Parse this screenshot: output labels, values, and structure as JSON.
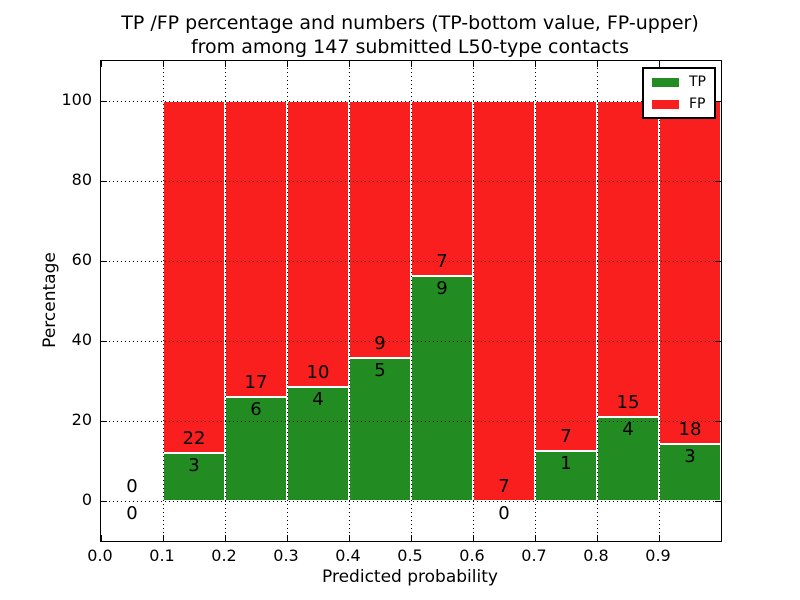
{
  "figure": {
    "title_line1": "TP /FP percentage and numbers (TP-bottom value, FP-upper)",
    "title_line2": "from among 147 submitted L50-type contacts",
    "xlabel": "Predicted probability",
    "ylabel": "Percentage"
  },
  "legend": {
    "position": "upper right",
    "items": [
      {
        "label": "TP",
        "color": "#228B22"
      },
      {
        "label": "FP",
        "color": "#FA1F1F"
      }
    ]
  },
  "chart_data": {
    "type": "bar",
    "stacked": true,
    "title": "TP /FP percentage and numbers (TP-bottom value, FP-upper) from among 147 submitted L50-type contacts",
    "xlabel": "Predicted probability",
    "ylabel": "Percentage",
    "xlim": [
      0.0,
      1.0
    ],
    "ylim": [
      -10,
      110
    ],
    "x_ticks": [
      "0.0",
      "0.1",
      "0.2",
      "0.3",
      "0.4",
      "0.5",
      "0.6",
      "0.7",
      "0.8",
      "0.9"
    ],
    "y_ticks": [
      0,
      20,
      40,
      60,
      80,
      100
    ],
    "grid": true,
    "grid_style": "dotted",
    "total_contacts": 147,
    "note": "bar heights are percentages tp/(tp+fp)*100; annotations show raw counts, TP at bottom, FP above",
    "bins": [
      {
        "x_start": 0.0,
        "x_end": 0.1,
        "tp_count": 0,
        "fp_count": 0,
        "tp_pct": 0,
        "fp_pct": 0
      },
      {
        "x_start": 0.1,
        "x_end": 0.2,
        "tp_count": 3,
        "fp_count": 22,
        "tp_pct": 12.0,
        "fp_pct": 88.0
      },
      {
        "x_start": 0.2,
        "x_end": 0.3,
        "tp_count": 6,
        "fp_count": 17,
        "tp_pct": 26.09,
        "fp_pct": 73.91
      },
      {
        "x_start": 0.3,
        "x_end": 0.4,
        "tp_count": 4,
        "fp_count": 10,
        "tp_pct": 28.57,
        "fp_pct": 71.43
      },
      {
        "x_start": 0.4,
        "x_end": 0.5,
        "tp_count": 5,
        "fp_count": 9,
        "tp_pct": 35.71,
        "fp_pct": 64.29
      },
      {
        "x_start": 0.5,
        "x_end": 0.6,
        "tp_count": 9,
        "fp_count": 7,
        "tp_pct": 56.25,
        "fp_pct": 43.75
      },
      {
        "x_start": 0.6,
        "x_end": 0.7,
        "tp_count": 0,
        "fp_count": 7,
        "tp_pct": 0,
        "fp_pct": 100
      },
      {
        "x_start": 0.7,
        "x_end": 0.8,
        "tp_count": 1,
        "fp_count": 7,
        "tp_pct": 12.5,
        "fp_pct": 87.5
      },
      {
        "x_start": 0.8,
        "x_end": 0.9,
        "tp_count": 4,
        "fp_count": 15,
        "tp_pct": 21.05,
        "fp_pct": 78.95
      },
      {
        "x_start": 0.9,
        "x_end": 1.0,
        "tp_count": 3,
        "fp_count": 18,
        "tp_pct": 14.29,
        "fp_pct": 85.71
      }
    ]
  },
  "colors": {
    "tp": "#228B22",
    "fp": "#FA1F1F",
    "grid": "#000000",
    "spine": "#000000",
    "background": "#FFFFFF",
    "text": "#000000"
  }
}
